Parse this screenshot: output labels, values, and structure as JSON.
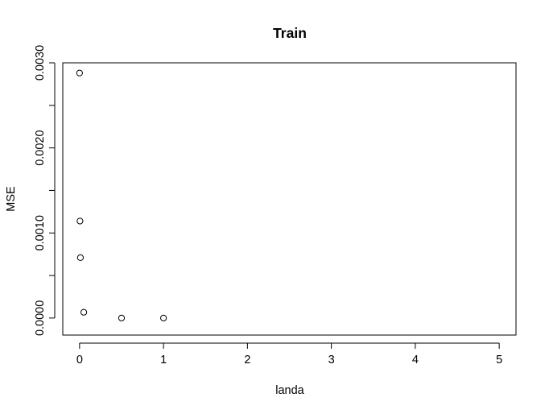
{
  "chart_data": {
    "type": "scatter",
    "title": "Train",
    "xlabel": "landa",
    "ylabel": "MSE",
    "xlim": [
      -0.2,
      5.2
    ],
    "ylim": [
      -0.0002,
      0.003
    ],
    "x_ticks": [
      0,
      1,
      2,
      3,
      4,
      5
    ],
    "x_tick_labels": [
      "0",
      "1",
      "2",
      "3",
      "4",
      "5"
    ],
    "y_ticks": [
      0.0,
      0.0005,
      0.001,
      0.0015,
      0.002,
      0.0025,
      0.003
    ],
    "y_tick_labels": [
      "0.0000",
      "",
      "0.0010",
      "",
      "0.0020",
      "",
      "0.0030"
    ],
    "grid": false,
    "marker": "open-circle",
    "points": [
      {
        "x": 0.0,
        "y": 0.00288
      },
      {
        "x": 0.005,
        "y": 0.00114
      },
      {
        "x": 0.01,
        "y": 0.00071
      },
      {
        "x": 0.05,
        "y": 6.8e-05
      },
      {
        "x": 0.5,
        "y": 5e-07
      },
      {
        "x": 1.0,
        "y": 1e-07
      }
    ]
  }
}
